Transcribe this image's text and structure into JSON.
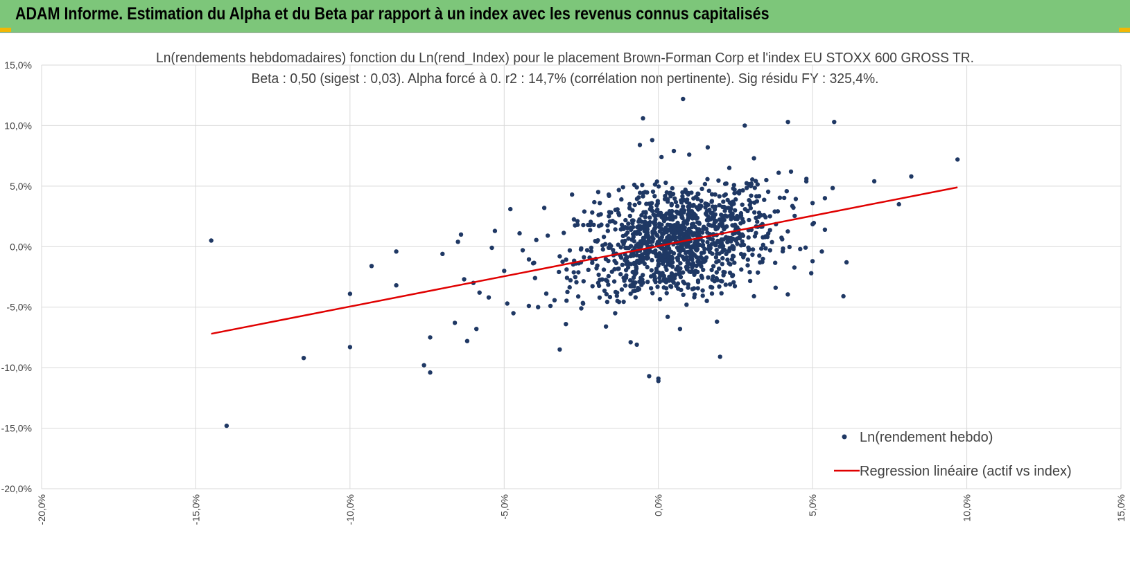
{
  "page": {
    "header_title": "ADAM Informe. Estimation du Alpha et du Beta par rapport à un index avec les revenus connus capitalisés",
    "header_color": "#7dc67a",
    "corner_color": "#f2b705"
  },
  "chart_data": {
    "type": "scatter",
    "title": "Ln(rendements hebdomadaires) fonction du Ln(rend_Index) pour le placement Brown-Forman Corp et l'index EU STOXX 600 GROSS TR.",
    "subtitle": "Beta : 0,50 (sigest : 0,03). Alpha forcé à 0. r2 : 14,7% (corrélation non pertinente). Sig résidu FY : 325,4%.",
    "xlabel": "",
    "ylabel": "",
    "xlim": [
      -20,
      15
    ],
    "ylim": [
      -20,
      15
    ],
    "x_ticks": [
      -20,
      -15,
      -10,
      -5,
      0,
      5,
      10,
      15
    ],
    "y_ticks": [
      15,
      10,
      5,
      0,
      -5,
      -10,
      -15,
      -20
    ],
    "x_tick_labels": [
      "-20,0%",
      "-15,0%",
      "-10,0%",
      "-5,0%",
      "0,0%",
      "5,0%",
      "10,0%",
      "15,0%"
    ],
    "y_tick_labels": [
      "15,0%",
      "10,0%",
      "5,0%",
      "0,0%",
      "-5,0%",
      "-10,0%",
      "-15,0%",
      "-20,0%"
    ],
    "grid": true,
    "legend_position": "bottom-right",
    "series": [
      {
        "name": "Ln(rendement hebdo)",
        "kind": "points",
        "color": "#1f3864",
        "cluster": {
          "approx_count": 1200,
          "center_x": 0.6,
          "center_y": 0.4,
          "sd_x": 1.6,
          "sd_y": 2.4,
          "beta": 0.5
        },
        "points": [
          [
            -14.5,
            0.5
          ],
          [
            -14.0,
            -14.8
          ],
          [
            -11.5,
            -9.2
          ],
          [
            -10.0,
            -3.9
          ],
          [
            -10.0,
            -8.3
          ],
          [
            -9.3,
            -1.6
          ],
          [
            -8.5,
            -0.4
          ],
          [
            -8.5,
            -3.2
          ],
          [
            -7.6,
            -9.8
          ],
          [
            -7.4,
            -10.4
          ],
          [
            -7.4,
            -7.5
          ],
          [
            -7.0,
            -0.6
          ],
          [
            -6.6,
            -6.3
          ],
          [
            -6.5,
            0.4
          ],
          [
            -6.4,
            1.0
          ],
          [
            -6.3,
            -2.7
          ],
          [
            -6.2,
            -7.8
          ],
          [
            -6.0,
            -3.0
          ],
          [
            -5.9,
            -6.8
          ],
          [
            -5.8,
            -3.8
          ],
          [
            -5.5,
            -4.2
          ],
          [
            -5.4,
            -0.1
          ],
          [
            -5.3,
            1.3
          ],
          [
            -5.0,
            -2.0
          ],
          [
            -4.9,
            -4.7
          ],
          [
            -4.8,
            3.1
          ],
          [
            -4.7,
            -5.5
          ],
          [
            -4.5,
            1.1
          ],
          [
            -4.4,
            -0.3
          ],
          [
            -4.2,
            -4.9
          ],
          [
            -4.0,
            -2.6
          ],
          [
            -3.9,
            -5.0
          ],
          [
            -3.7,
            3.2
          ],
          [
            -3.5,
            -4.9
          ],
          [
            -3.2,
            -0.8
          ],
          [
            -3.0,
            -6.4
          ],
          [
            -2.8,
            4.3
          ],
          [
            -2.5,
            -5.1
          ],
          [
            -3.2,
            -8.5
          ],
          [
            -2.4,
            2.9
          ],
          [
            -1.9,
            3.6
          ],
          [
            -1.7,
            -6.6
          ],
          [
            -1.6,
            4.2
          ],
          [
            -1.4,
            -5.5
          ],
          [
            -1.2,
            3.9
          ],
          [
            -0.9,
            -7.9
          ],
          [
            -0.7,
            -8.1
          ],
          [
            -0.7,
            4.9
          ],
          [
            -0.6,
            8.4
          ],
          [
            -0.5,
            10.6
          ],
          [
            -0.3,
            -10.7
          ],
          [
            -0.2,
            8.8
          ],
          [
            0.0,
            -10.9
          ],
          [
            0.0,
            -11.1
          ],
          [
            0.1,
            7.4
          ],
          [
            0.3,
            -5.8
          ],
          [
            0.5,
            7.9
          ],
          [
            0.7,
            -6.8
          ],
          [
            0.8,
            12.2
          ],
          [
            1.0,
            7.6
          ],
          [
            1.6,
            8.2
          ],
          [
            1.9,
            -6.2
          ],
          [
            2.0,
            -9.1
          ],
          [
            2.3,
            6.5
          ],
          [
            2.8,
            10.0
          ],
          [
            3.1,
            7.3
          ],
          [
            3.1,
            -4.1
          ],
          [
            3.5,
            5.5
          ],
          [
            3.8,
            -3.4
          ],
          [
            3.9,
            6.1
          ],
          [
            4.2,
            10.3
          ],
          [
            4.3,
            6.2
          ],
          [
            4.6,
            -0.2
          ],
          [
            4.8,
            5.6
          ],
          [
            5.0,
            -1.2
          ],
          [
            5.0,
            3.6
          ],
          [
            5.3,
            -0.4
          ],
          [
            5.4,
            4.0
          ],
          [
            5.4,
            1.4
          ],
          [
            5.7,
            10.3
          ],
          [
            6.0,
            -4.1
          ],
          [
            6.1,
            -1.3
          ],
          [
            7.0,
            5.4
          ],
          [
            7.8,
            3.5
          ],
          [
            8.2,
            5.8
          ],
          [
            9.7,
            7.2
          ]
        ]
      },
      {
        "name": "Regression linéaire (actif vs index)",
        "kind": "line",
        "color": "#e00000",
        "x": [
          -14.5,
          9.7
        ],
        "y": [
          -7.2,
          4.9
        ]
      }
    ]
  }
}
